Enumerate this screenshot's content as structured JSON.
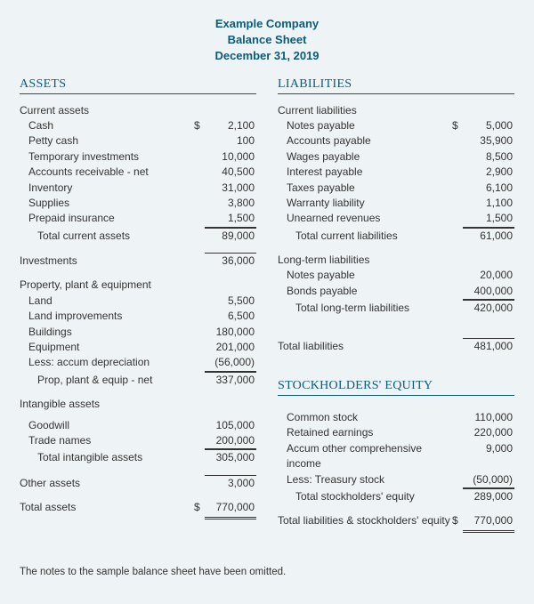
{
  "colors": {
    "background": "#eef3f5",
    "heading": "#0b5b7a",
    "text": "#333333",
    "rule": "#333333"
  },
  "typography": {
    "body_font": "Arial",
    "heading_font": "Georgia",
    "body_size_pt": 9,
    "heading_size_pt": 11
  },
  "header": {
    "line1": "Example Company",
    "line2": "Balance Sheet",
    "line3": "December 31, 2019"
  },
  "assets": {
    "title": "ASSETS",
    "current": {
      "heading": "Current assets",
      "items": [
        {
          "label": "Cash",
          "value": "2,100",
          "currency": "$"
        },
        {
          "label": "Petty cash",
          "value": "100"
        },
        {
          "label": "Temporary investments",
          "value": "10,000"
        },
        {
          "label": "Accounts receivable - net",
          "value": "40,500"
        },
        {
          "label": "Inventory",
          "value": "31,000"
        },
        {
          "label": "Supplies",
          "value": "3,800"
        },
        {
          "label": "Prepaid insurance",
          "value": "1,500",
          "underline": true
        }
      ],
      "total_label": "Total current assets",
      "total_value": "89,000"
    },
    "investments": {
      "label": "Investments",
      "value": "36,000"
    },
    "ppe": {
      "heading": "Property, plant & equipment",
      "items": [
        {
          "label": "Land",
          "value": "5,500"
        },
        {
          "label": "Land improvements",
          "value": "6,500"
        },
        {
          "label": "Buildings",
          "value": "180,000"
        },
        {
          "label": "Equipment",
          "value": "201,000"
        },
        {
          "label": "Less: accum depreciation",
          "value": "(56,000)",
          "underline": true
        }
      ],
      "total_label": "Prop, plant & equip - net",
      "total_value": "337,000"
    },
    "intangible": {
      "heading": "Intangible assets",
      "items": [
        {
          "label": "Goodwill",
          "value": "105,000"
        },
        {
          "label": "Trade names",
          "value": "200,000",
          "underline": true
        }
      ],
      "total_label": "Total intangible assets",
      "total_value": "305,000"
    },
    "other": {
      "label": "Other assets",
      "value": "3,000"
    },
    "total": {
      "label": "Total assets",
      "currency": "$",
      "value": "770,000"
    }
  },
  "liabilities": {
    "title": "LIABILITIES",
    "current": {
      "heading": "Current liabilities",
      "items": [
        {
          "label": "Notes payable",
          "value": "5,000",
          "currency": "$"
        },
        {
          "label": "Accounts payable",
          "value": "35,900"
        },
        {
          "label": "Wages payable",
          "value": "8,500"
        },
        {
          "label": "Interest payable",
          "value": "2,900"
        },
        {
          "label": "Taxes payable",
          "value": "6,100"
        },
        {
          "label": "Warranty liability",
          "value": "1,100"
        },
        {
          "label": "Unearned revenues",
          "value": "1,500",
          "underline": true
        }
      ],
      "total_label": "Total current liabilities",
      "total_value": "61,000"
    },
    "longterm": {
      "heading": "Long-term liabilities",
      "items": [
        {
          "label": "Notes payable",
          "value": "20,000"
        },
        {
          "label": "Bonds payable",
          "value": "400,000",
          "underline": true
        }
      ],
      "total_label": "Total long-term liabilities",
      "total_value": "420,000"
    },
    "total": {
      "label": "Total liabilities",
      "value": "481,000"
    }
  },
  "equity": {
    "title": "STOCKHOLDERS' EQUITY",
    "items": [
      {
        "label": "Common stock",
        "value": "110,000"
      },
      {
        "label": "Retained earnings",
        "value": "220,000"
      },
      {
        "label": "Accum other comprehensive income",
        "value": "9,000"
      },
      {
        "label": "Less: Treasury stock",
        "value": "(50,000)",
        "underline": true
      }
    ],
    "total_label": "Total stockholders' equity",
    "total_value": "289,000",
    "grand_label": "Total liabilities & stockholders' equity",
    "grand_currency": "$",
    "grand_value": "770,000"
  },
  "footnote": "The notes to the sample balance sheet have been omitted."
}
